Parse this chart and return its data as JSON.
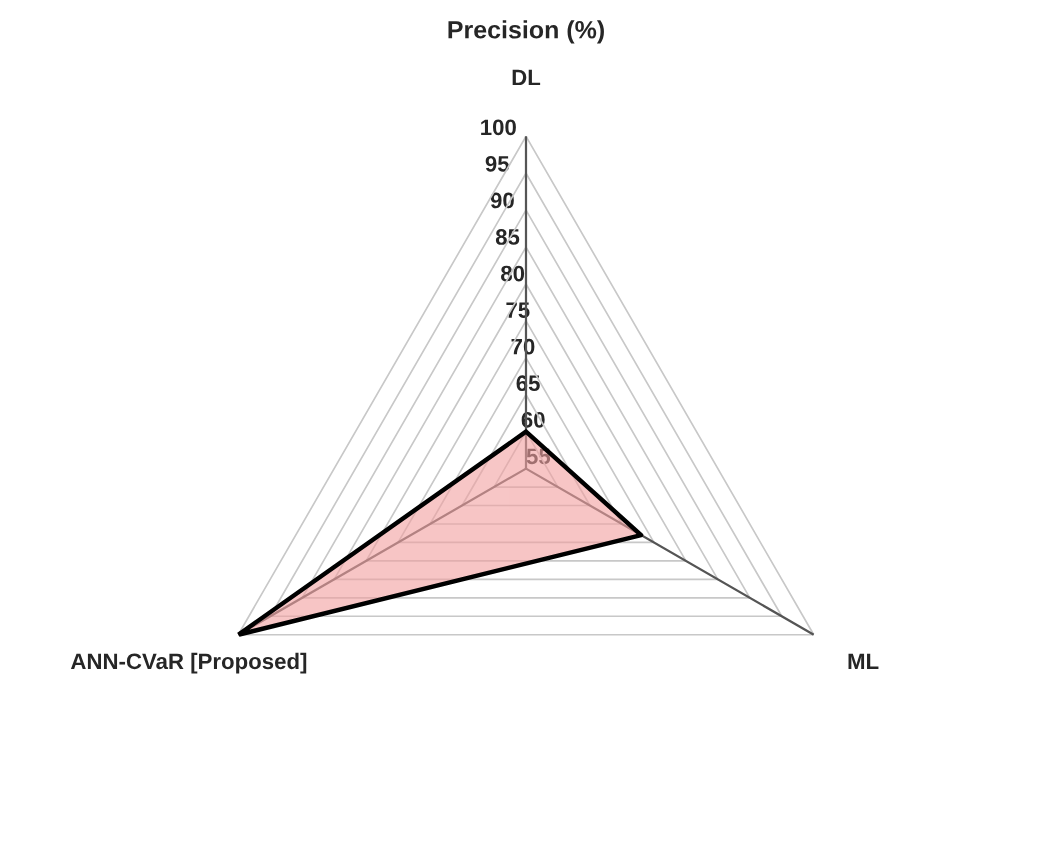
{
  "chart_data": {
    "type": "radar",
    "title": "Precision (%)",
    "categories": [
      "DL",
      "ML",
      "ANN-CVaR [Proposed]"
    ],
    "series": [
      {
        "color": "#f2a0a0",
        "values": [
          60,
          73,
          100
        ]
      }
    ],
    "ylim": [
      55,
      100
    ],
    "yticks": [
      55,
      60,
      65,
      70,
      75,
      80,
      85,
      90,
      95,
      100
    ],
    "grid": true
  }
}
